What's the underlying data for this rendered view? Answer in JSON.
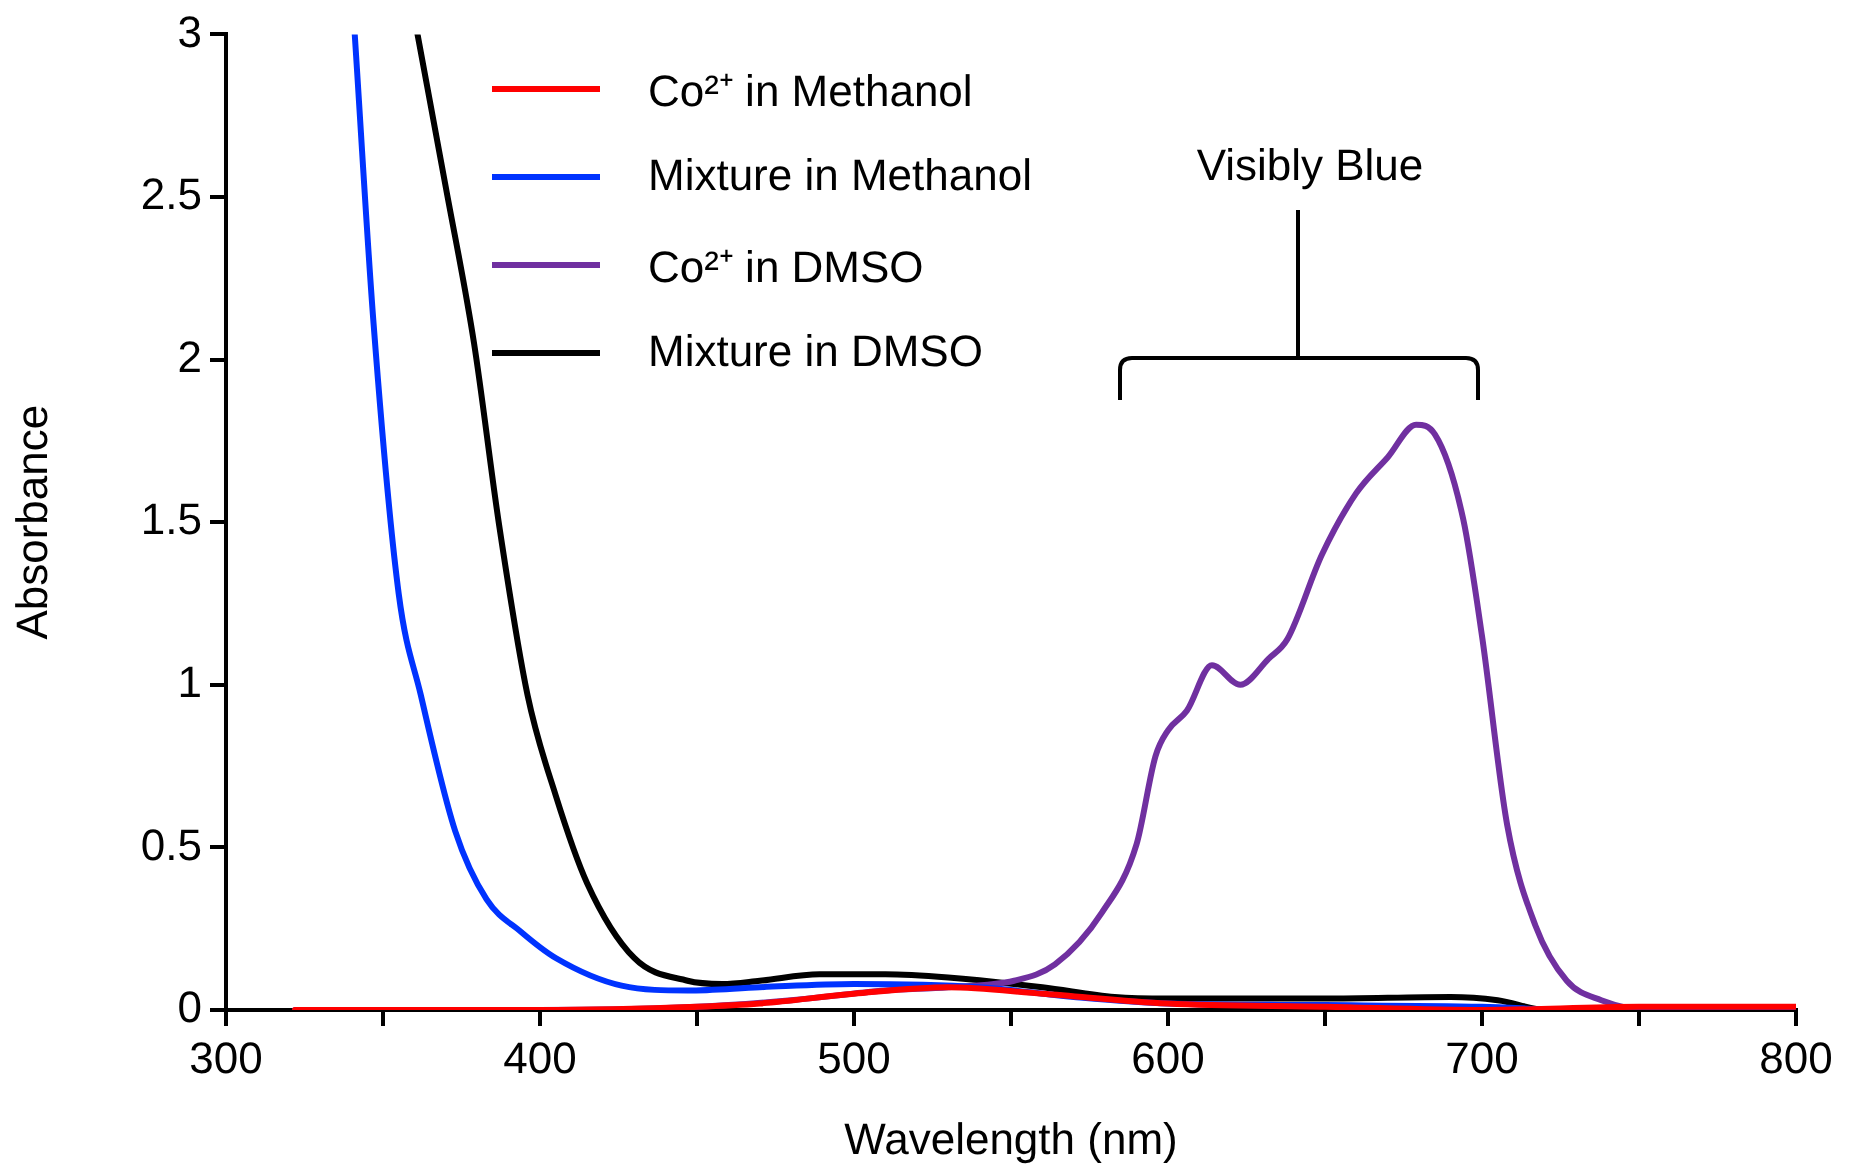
{
  "chart_data": {
    "type": "line",
    "xlabel": "Wavelength (nm)",
    "ylabel": "Absorbance",
    "xlim": [
      300,
      800
    ],
    "ylim": [
      0,
      3
    ],
    "xticks": [
      300,
      {
        "value": 350,
        "label": null
      },
      400,
      {
        "value": 450,
        "label": null
      },
      500,
      {
        "value": 550,
        "label": null
      },
      600,
      {
        "value": 650,
        "label": null
      },
      700,
      {
        "value": 750,
        "label": null
      },
      800
    ],
    "yticks": [
      0,
      0.5,
      1,
      1.5,
      2,
      2.5,
      3
    ],
    "grid": false,
    "legend": "top left",
    "marker": "none",
    "line_style": "solid",
    "annotations": [
      "Visibly Blue"
    ],
    "series": [
      {
        "name": "Co²⁺ in Methanol",
        "color": "#ff0000",
        "x": [
          322,
          400,
          450,
          470,
          500,
          530,
          560,
          600,
          650,
          700,
          750,
          800
        ],
        "values": [
          0,
          0,
          0.01,
          0.02,
          0.05,
          0.07,
          0.05,
          0.02,
          0.01,
          0,
          0.01,
          0.01
        ]
      },
      {
        "name": "Mixture in Methanol",
        "color": "#0033ff",
        "x": [
          341,
          347,
          355,
          362,
          373,
          383,
          394,
          405,
          426,
          447,
          470,
          500,
          540,
          570,
          600,
          650,
          700,
          730,
          800
        ],
        "values": [
          3,
          2.11,
          1.28,
          0.97,
          0.55,
          0.34,
          0.24,
          0.16,
          0.075,
          0.06,
          0.07,
          0.08,
          0.07,
          0.04,
          0.02,
          0.015,
          0.01,
          0,
          0
        ]
      },
      {
        "name": "Co²⁺ in DMSO",
        "color": "#7030a0",
        "x": [
          322,
          400,
          450,
          480,
          510,
          530,
          551,
          564,
          579,
          590,
          596,
          600,
          606,
          614,
          623,
          632,
          638,
          649,
          660,
          670,
          679,
          685,
          694,
          700,
          708,
          717,
          727,
          738,
          753,
          800
        ],
        "values": [
          0,
          0,
          0.01,
          0.03,
          0.06,
          0.07,
          0.09,
          0.14,
          0.3,
          0.51,
          0.78,
          0.86,
          0.92,
          1.06,
          1,
          1.08,
          1.14,
          1.4,
          1.59,
          1.7,
          1.8,
          1.77,
          1.51,
          1.15,
          0.57,
          0.26,
          0.09,
          0.03,
          0,
          0
        ]
      },
      {
        "name": "Mixture in DMSO",
        "color": "#000000",
        "x": [
          361,
          370,
          379,
          387,
          396,
          405,
          415,
          430,
          447,
          458,
          470,
          489,
          510,
          530,
          560,
          583,
          600,
          650,
          690,
          705,
          721,
          750,
          800
        ],
        "values": [
          3,
          2.53,
          2.05,
          1.49,
          0.97,
          0.66,
          0.39,
          0.16,
          0.09,
          0.08,
          0.09,
          0.11,
          0.11,
          0.1,
          0.07,
          0.04,
          0.035,
          0.035,
          0.04,
          0.03,
          0,
          0,
          0
        ]
      }
    ]
  }
}
